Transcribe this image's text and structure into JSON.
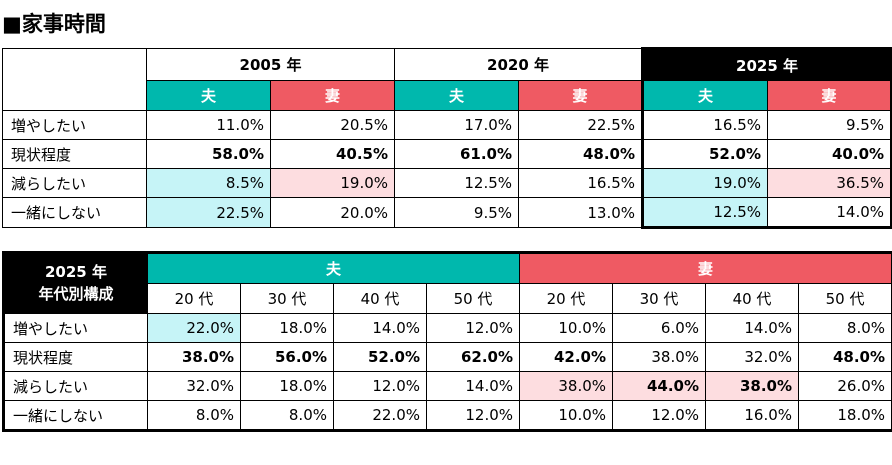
{
  "title": "■家事時間",
  "top": {
    "years": [
      "2005 年",
      "2020 年",
      "2025 年"
    ],
    "husband": "夫",
    "wife": "妻",
    "rows": [
      {
        "label": "増やしたい",
        "values": [
          "11.0%",
          "20.5%",
          "17.0%",
          "22.5%",
          "16.5%",
          "9.5%"
        ]
      },
      {
        "label": "現状程度",
        "values": [
          "58.0%",
          "40.5%",
          "61.0%",
          "48.0%",
          "52.0%",
          "40.0%"
        ]
      },
      {
        "label": "減らしたい",
        "values": [
          "8.5%",
          "19.0%",
          "12.5%",
          "16.5%",
          "19.0%",
          "36.5%"
        ]
      },
      {
        "label": "一緒にしない",
        "values": [
          "22.5%",
          "20.0%",
          "9.5%",
          "13.0%",
          "12.5%",
          "14.0%"
        ]
      }
    ]
  },
  "bottom": {
    "corner_line1": "2025 年",
    "corner_line2": "年代別構成",
    "husband": "夫",
    "wife": "妻",
    "ages": [
      "20 代",
      "30 代",
      "40 代",
      "50 代",
      "20 代",
      "30 代",
      "40 代",
      "50 代"
    ],
    "rows": [
      {
        "label": "増やしたい",
        "values": [
          "22.0%",
          "18.0%",
          "14.0%",
          "12.0%",
          "10.0%",
          "6.0%",
          "14.0%",
          "8.0%"
        ]
      },
      {
        "label": "現状程度",
        "values": [
          "38.0%",
          "56.0%",
          "52.0%",
          "62.0%",
          "42.0%",
          "38.0%",
          "32.0%",
          "48.0%"
        ]
      },
      {
        "label": "減らしたい",
        "values": [
          "32.0%",
          "18.0%",
          "12.0%",
          "14.0%",
          "38.0%",
          "44.0%",
          "38.0%",
          "26.0%"
        ]
      },
      {
        "label": "一緒にしない",
        "values": [
          "8.0%",
          "8.0%",
          "22.0%",
          "12.0%",
          "10.0%",
          "12.0%",
          "16.0%",
          "18.0%"
        ]
      }
    ]
  },
  "colors": {
    "husband": "#00b8ad",
    "wife": "#ef5a63",
    "highlight_cyan": "#c6f4f7",
    "highlight_pink": "#fddde0"
  }
}
